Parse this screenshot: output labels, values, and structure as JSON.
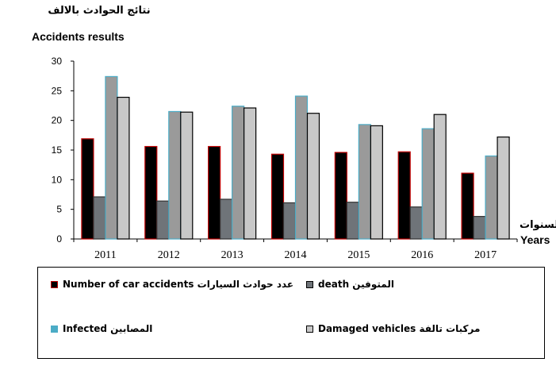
{
  "chart_data": {
    "type": "bar",
    "title": "",
    "ylabel_ar": "نتائج الحوادث بالالف",
    "ylabel_en": "Accidents results",
    "xlabel_ar": "السنوات",
    "xlabel_en": "Years",
    "categories": [
      "2011",
      "2012",
      "2013",
      "2014",
      "2015",
      "2016",
      "2017"
    ],
    "ylim": [
      0,
      30
    ],
    "yticks": [
      "0",
      "5",
      "10",
      "15",
      "20",
      "25",
      "30"
    ],
    "grid": false,
    "legend_position": "bottom",
    "series": [
      {
        "name": "Number of car accidents عدد حوادث السيارات",
        "color": "#000000",
        "edge": "#c00000",
        "values": [
          16.9,
          15.6,
          15.6,
          14.3,
          14.6,
          14.7,
          11.1
        ]
      },
      {
        "name": "death المتوفين",
        "color": "#6f7479",
        "edge": "#333333",
        "values": [
          7.1,
          6.4,
          6.7,
          6.1,
          6.2,
          5.4,
          3.8
        ]
      },
      {
        "name": "Infected المصابين",
        "color": "#9a9a9a",
        "edge": "#4bacc6",
        "values": [
          27.4,
          21.5,
          22.4,
          24.1,
          19.3,
          18.6,
          14.0
        ]
      },
      {
        "name": "Damaged vehicles مركبات تالفة",
        "color": "#c8c8c8",
        "edge": "#000000",
        "values": [
          23.9,
          21.4,
          22.1,
          21.2,
          19.1,
          21.0,
          17.2
        ]
      }
    ]
  }
}
